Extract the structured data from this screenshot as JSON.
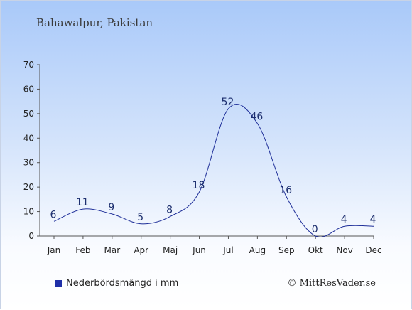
{
  "chart_data": {
    "type": "line",
    "title": "Bahawalpur, Pakistan",
    "categories": [
      "Jan",
      "Feb",
      "Mar",
      "Apr",
      "Maj",
      "Jun",
      "Jul",
      "Aug",
      "Sep",
      "Okt",
      "Nov",
      "Dec"
    ],
    "series": [
      {
        "name": "Nederbördsmängd i mm",
        "values": [
          6,
          11,
          9,
          5,
          8,
          18,
          52,
          46,
          16,
          0,
          4,
          4
        ]
      }
    ],
    "ylim": [
      0,
      70
    ],
    "yticks": [
      0,
      10,
      20,
      30,
      40,
      50,
      60,
      70
    ],
    "grid": false,
    "legend_position": "bottom-left",
    "line_color": "#1f2f99"
  },
  "credit": "© MittResVader.se"
}
